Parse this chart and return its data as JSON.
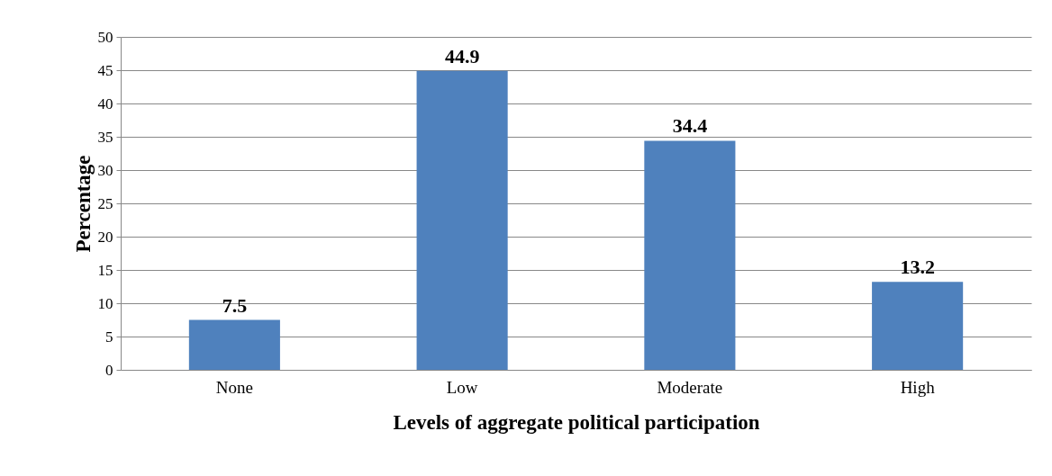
{
  "chart_data": {
    "type": "bar",
    "xlabel": "Levels of  aggregate political participation",
    "ylabel": "Percentage",
    "categories": [
      "None",
      "Low",
      "Moderate",
      "High"
    ],
    "values": [
      7.5,
      44.9,
      34.4,
      13.2
    ],
    "color": "#4f81bd",
    "ylim": [
      0,
      50
    ],
    "yticks": [
      0,
      5,
      10,
      15,
      20,
      25,
      30,
      35,
      40,
      45,
      50
    ],
    "grid": "y",
    "data_labels": true
  }
}
